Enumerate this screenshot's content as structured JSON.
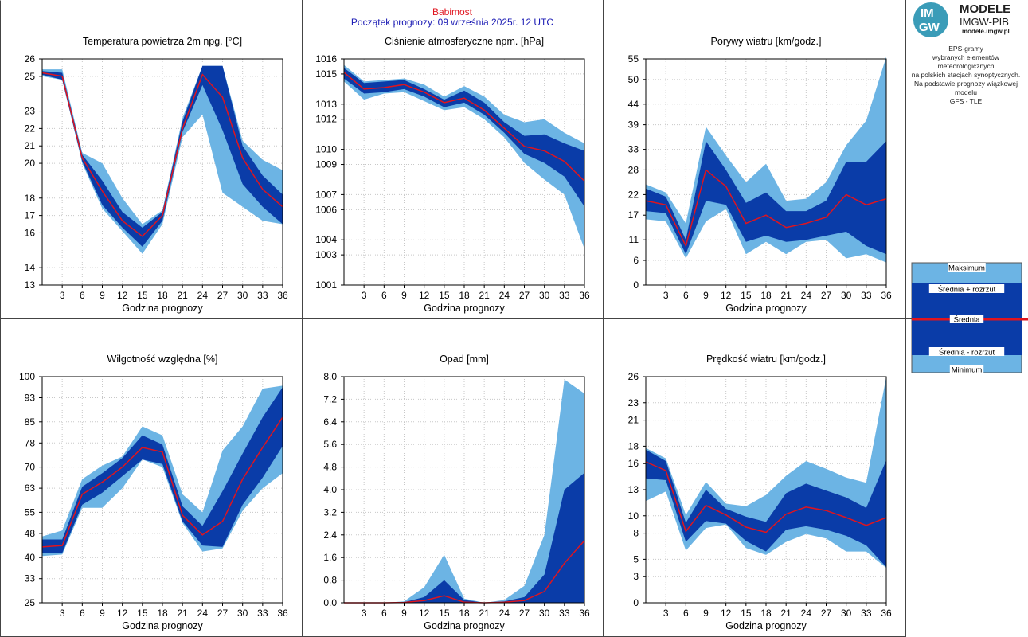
{
  "header": {
    "station": "Babimost",
    "start": "Początek prognozy: 09 września 2025r. 12 UTC"
  },
  "logo": {
    "top_text": "IM",
    "bottom_text": "GW",
    "brand_line1": "MODELE",
    "brand_line2": "IMGW-PIB",
    "brand_url": "modele.imgw.pl"
  },
  "side_text": {
    "lines_a": [
      "EPS-gramy",
      "wybranych elementów meteorologicznych",
      "na polskich stacjach  synoptycznych."
    ],
    "lines_b": [
      "Na podstawie prognozy wiązkowej modelu",
      "GFS - TLE"
    ]
  },
  "legend": {
    "max": "Maksimum",
    "upper": "Średnia + rozrzut",
    "mean": "Średnia",
    "lower": "Średnia - rozrzut",
    "min": "Minimum"
  },
  "colors": {
    "light_band": "#6cb4e4",
    "dark_band": "#0a3ca8",
    "mean_line": "#e0141e"
  },
  "chart_data": [
    {
      "type": "area",
      "title": "Temperatura powietrza 2m npg. [°C]",
      "xlabel": "Godzina prognozy",
      "ylabel": "",
      "xlim": [
        0,
        36
      ],
      "ylim": [
        13,
        26
      ],
      "x_ticks": [
        3,
        6,
        9,
        12,
        15,
        18,
        21,
        24,
        27,
        30,
        33,
        36
      ],
      "y_ticks": [
        13,
        14,
        16,
        17,
        18,
        20,
        21,
        22,
        23,
        25,
        26
      ],
      "x": [
        0,
        3,
        6,
        9,
        12,
        15,
        18,
        21,
        24,
        27,
        30,
        33,
        36
      ],
      "series": [
        {
          "name": "Maksimum",
          "values": [
            25.4,
            25.4,
            20.6,
            20.0,
            18.0,
            16.5,
            17.3,
            22.6,
            25.6,
            25.6,
            21.3,
            20.2,
            19.6
          ]
        },
        {
          "name": "Średnia + rozrzut",
          "values": [
            25.3,
            25.2,
            20.5,
            19.0,
            17.2,
            16.3,
            17.2,
            22.4,
            25.6,
            25.6,
            21.0,
            19.3,
            18.2
          ]
        },
        {
          "name": "Średnia",
          "values": [
            25.2,
            25.0,
            20.3,
            18.4,
            16.7,
            15.8,
            17.0,
            22.0,
            25.1,
            23.8,
            20.3,
            18.5,
            17.5
          ]
        },
        {
          "name": "Średnia - rozrzut",
          "values": [
            25.1,
            24.8,
            20.1,
            17.6,
            16.3,
            15.2,
            16.7,
            21.8,
            24.5,
            21.9,
            18.8,
            17.5,
            16.5
          ]
        },
        {
          "name": "Minimum",
          "values": [
            25.0,
            24.8,
            20.0,
            17.4,
            16.1,
            14.8,
            16.5,
            21.5,
            22.8,
            18.3,
            17.5,
            16.7,
            16.5
          ]
        }
      ]
    },
    {
      "type": "area",
      "title": "Ciśnienie atmosferyczne npm. [hPa]",
      "xlabel": "Godzina prognozy",
      "ylabel": "",
      "xlim": [
        0,
        36
      ],
      "ylim": [
        1001,
        1016
      ],
      "x_ticks": [
        3,
        6,
        9,
        12,
        15,
        18,
        21,
        24,
        27,
        30,
        33,
        36
      ],
      "y_ticks": [
        1001,
        1003,
        1004,
        1006,
        1007,
        1009,
        1010,
        1012,
        1013,
        1015,
        1016
      ],
      "x": [
        0,
        3,
        6,
        9,
        12,
        15,
        18,
        21,
        24,
        27,
        30,
        33,
        36
      ],
      "series": [
        {
          "name": "Maksimum",
          "values": [
            1015.6,
            1014.5,
            1014.6,
            1014.7,
            1014.3,
            1013.5,
            1014.2,
            1013.5,
            1012.3,
            1011.8,
            1012.0,
            1011.1,
            1010.4
          ]
        },
        {
          "name": "Średnia + rozrzut",
          "values": [
            1015.4,
            1014.4,
            1014.5,
            1014.6,
            1014.0,
            1013.3,
            1013.9,
            1013.1,
            1011.8,
            1010.9,
            1011.0,
            1010.4,
            1009.9
          ]
        },
        {
          "name": "Średnia",
          "values": [
            1015.1,
            1014.0,
            1014.1,
            1014.3,
            1013.8,
            1013.1,
            1013.4,
            1012.6,
            1011.4,
            1010.2,
            1009.9,
            1009.2,
            1007.9
          ]
        },
        {
          "name": "Średnia - rozrzut",
          "values": [
            1014.7,
            1013.7,
            1013.8,
            1014.0,
            1013.5,
            1012.8,
            1013.1,
            1012.3,
            1011.1,
            1009.7,
            1009.1,
            1008.2,
            1006.2
          ]
        },
        {
          "name": "Minimum",
          "values": [
            1014.5,
            1013.3,
            1013.7,
            1013.8,
            1013.2,
            1012.6,
            1012.8,
            1012.0,
            1010.8,
            1009.1,
            1008.0,
            1007.0,
            1003.4
          ]
        }
      ]
    },
    {
      "type": "area",
      "title": "Porywy wiatru [km/godz.]",
      "xlabel": "Godzina prognozy",
      "ylabel": "",
      "xlim": [
        0,
        36
      ],
      "ylim": [
        0,
        55
      ],
      "x_ticks": [
        3,
        6,
        9,
        12,
        15,
        18,
        21,
        24,
        27,
        30,
        33,
        36
      ],
      "y_ticks": [
        0,
        6,
        11,
        17,
        22,
        28,
        33,
        39,
        44,
        50,
        55
      ],
      "x": [
        0,
        3,
        6,
        9,
        12,
        15,
        18,
        21,
        24,
        27,
        30,
        33,
        36
      ],
      "series": [
        {
          "name": "Maksimum",
          "values": [
            24.5,
            22.5,
            15.0,
            38.5,
            31.5,
            25.0,
            29.5,
            20.5,
            21.0,
            25.0,
            34.0,
            40.0,
            55.5
          ]
        },
        {
          "name": "Średnia + rozrzut",
          "values": [
            23.5,
            21.5,
            11.0,
            35.0,
            28.0,
            20.0,
            22.5,
            18.0,
            18.0,
            20.5,
            30.0,
            30.0,
            35.0
          ]
        },
        {
          "name": "Średnia",
          "values": [
            20.5,
            19.5,
            9.5,
            28.0,
            24.0,
            15.0,
            17.0,
            14.0,
            15.0,
            16.5,
            22.0,
            19.5,
            21.0
          ]
        },
        {
          "name": "Średnia - rozrzut",
          "values": [
            18.0,
            17.5,
            7.5,
            20.5,
            19.5,
            10.5,
            12.0,
            10.5,
            11.0,
            12.0,
            13.0,
            9.5,
            7.5
          ]
        },
        {
          "name": "Minimum",
          "values": [
            16.0,
            15.5,
            6.5,
            15.5,
            18.5,
            7.5,
            10.5,
            7.5,
            10.5,
            11.0,
            6.5,
            7.5,
            5.5
          ]
        }
      ]
    },
    {
      "type": "area",
      "title": "Wilgotność względna [%]",
      "xlabel": "Godzina prognozy",
      "ylabel": "",
      "xlim": [
        0,
        36
      ],
      "ylim": [
        25,
        100
      ],
      "x_ticks": [
        3,
        6,
        9,
        12,
        15,
        18,
        21,
        24,
        27,
        30,
        33,
        36
      ],
      "y_ticks": [
        25,
        33,
        40,
        48,
        55,
        63,
        70,
        78,
        85,
        93,
        100
      ],
      "x": [
        0,
        3,
        6,
        9,
        12,
        15,
        18,
        21,
        24,
        27,
        30,
        33,
        36
      ],
      "series": [
        {
          "name": "Maksimum",
          "values": [
            47,
            49,
            66,
            70.5,
            73.5,
            83.5,
            80.5,
            61,
            55,
            75.5,
            83.5,
            96,
            97
          ]
        },
        {
          "name": "Średnia + rozrzut",
          "values": [
            46,
            46,
            63.5,
            68,
            73,
            80.5,
            77.5,
            57,
            50.5,
            62,
            74.5,
            86.5,
            96.5
          ]
        },
        {
          "name": "Średnia",
          "values": [
            43.5,
            44,
            61,
            65,
            70,
            76.5,
            75,
            54,
            47.5,
            52,
            66,
            76.5,
            86.5
          ]
        },
        {
          "name": "Średnia - rozrzut",
          "values": [
            41.5,
            41.5,
            57.5,
            61.5,
            67,
            72.5,
            71,
            52,
            44,
            43.5,
            57.5,
            66.5,
            77
          ]
        },
        {
          "name": "Minimum",
          "values": [
            40.5,
            41,
            56.5,
            56.5,
            63,
            72.5,
            70,
            51.5,
            42,
            43,
            55.5,
            63,
            68
          ]
        }
      ]
    },
    {
      "type": "area",
      "title": "Opad [mm]",
      "xlabel": "Godzina prognozy",
      "ylabel": "",
      "xlim": [
        0,
        36
      ],
      "ylim": [
        0,
        8
      ],
      "x_ticks": [
        3,
        6,
        9,
        12,
        15,
        18,
        21,
        24,
        27,
        30,
        33,
        36
      ],
      "y_ticks": [
        "0.0",
        "0.8",
        "1.6",
        "2.4",
        "3.2",
        "4.0",
        "4.8",
        "5.6",
        "6.4",
        "7.2",
        "8.0"
      ],
      "x": [
        0,
        3,
        6,
        9,
        12,
        15,
        18,
        21,
        24,
        27,
        30,
        33,
        36
      ],
      "series": [
        {
          "name": "Maksimum",
          "values": [
            0,
            0,
            0,
            0.05,
            0.55,
            1.7,
            0.15,
            0,
            0.1,
            0.6,
            2.4,
            7.9,
            7.4
          ]
        },
        {
          "name": "Średnia + rozrzut",
          "values": [
            0,
            0,
            0,
            0.02,
            0.2,
            0.8,
            0.1,
            0,
            0.05,
            0.2,
            1.0,
            4.0,
            4.6
          ]
        },
        {
          "name": "Średnia",
          "values": [
            0,
            0,
            0,
            0.01,
            0.08,
            0.25,
            0.02,
            0,
            0.02,
            0.08,
            0.4,
            1.4,
            2.2
          ]
        },
        {
          "name": "Średnia - rozrzut",
          "values": [
            0,
            0,
            0,
            0,
            0,
            0,
            0,
            0,
            0,
            0,
            0,
            0,
            0
          ]
        },
        {
          "name": "Minimum",
          "values": [
            0,
            0,
            0,
            0,
            0,
            0,
            0,
            0,
            0,
            0,
            0,
            0,
            0
          ]
        }
      ]
    },
    {
      "type": "area",
      "title": "Prędkość wiatru [km/godz.]",
      "xlabel": "Godzina prognozy",
      "ylabel": "",
      "xlim": [
        0,
        36
      ],
      "ylim": [
        0,
        26
      ],
      "x_ticks": [
        3,
        6,
        9,
        12,
        15,
        18,
        21,
        24,
        27,
        30,
        33,
        36
      ],
      "y_ticks": [
        0,
        3,
        5,
        8,
        10,
        13,
        16,
        18,
        21,
        23,
        26
      ],
      "x": [
        0,
        3,
        6,
        9,
        12,
        15,
        18,
        21,
        24,
        27,
        30,
        33,
        36
      ],
      "series": [
        {
          "name": "Maksimum",
          "values": [
            17.8,
            16.6,
            10.1,
            13.9,
            11.4,
            11.1,
            12.4,
            14.6,
            16.3,
            15.4,
            14.4,
            13.8,
            26.0
          ]
        },
        {
          "name": "Średnia + rozrzut",
          "values": [
            17.6,
            16.3,
            9.2,
            13.0,
            10.8,
            9.9,
            9.3,
            12.6,
            13.7,
            12.9,
            12.1,
            10.9,
            16.4
          ]
        },
        {
          "name": "Średnia",
          "values": [
            16.2,
            15.2,
            8.2,
            11.2,
            10.1,
            8.7,
            8.1,
            10.2,
            11.0,
            10.6,
            9.8,
            8.9,
            9.8
          ]
        },
        {
          "name": "Średnia - rozrzut",
          "values": [
            14.3,
            14.1,
            7.0,
            9.4,
            9.1,
            7.1,
            5.9,
            8.4,
            8.8,
            8.4,
            7.7,
            6.6,
            4.1
          ]
        },
        {
          "name": "Minimum",
          "values": [
            11.7,
            12.8,
            6.0,
            8.6,
            9.0,
            6.3,
            5.5,
            7.0,
            7.9,
            7.4,
            5.9,
            5.9,
            4.0
          ]
        }
      ]
    }
  ]
}
